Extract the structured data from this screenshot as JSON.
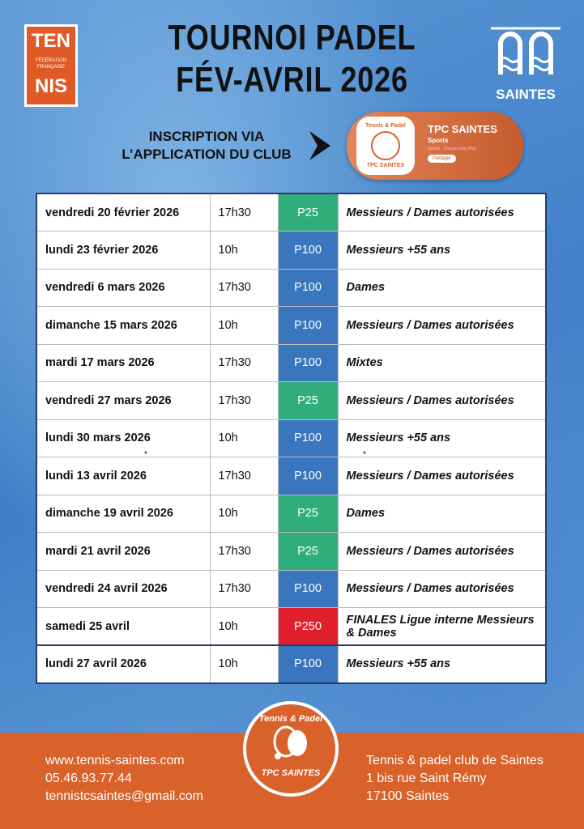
{
  "header": {
    "title_line1": "TOURNOI PADEL",
    "title_line2": "FÉV-AVRIL 2026",
    "inscription_line1": "INSCRIPTION VIA",
    "inscription_line2": "L’APPLICATION DU CLUB"
  },
  "fft_logo": {
    "top": "TEN",
    "middle": "FÉDÉRATION FRANÇAISE",
    "bottom": "NIS"
  },
  "city_logo": {
    "name": "SAINTES"
  },
  "app_card": {
    "name": "TPC SAINTES",
    "category": "Sports",
    "subtitle": "Gratuit · Conçue pour iPad",
    "button": "Partager",
    "icon_top": "Tennis & Padel",
    "icon_bottom": "TPC SAINTES"
  },
  "table": {
    "rows": [
      {
        "date": "vendredi 20 février 2026",
        "time": "17h30",
        "level": "P25",
        "color": "#2fae7c",
        "category": "Messieurs / Dames autorisées"
      },
      {
        "date": "lundi 23 février 2026",
        "time": "10h",
        "level": "P100",
        "color": "#3a76bd",
        "category": "Messieurs +55 ans"
      },
      {
        "date": "vendredi 6 mars 2026",
        "time": "17h30",
        "level": "P100",
        "color": "#3a76bd",
        "category": "Dames"
      },
      {
        "date": "dimanche 15 mars 2026",
        "time": "10h",
        "level": "P100",
        "color": "#3a76bd",
        "category": "Messieurs / Dames autorisées"
      },
      {
        "date": "mardi 17 mars 2026",
        "time": "17h30",
        "level": "P100",
        "color": "#3a76bd",
        "category": "Mixtes"
      },
      {
        "date": "vendredi 27 mars 2026",
        "time": "17h30",
        "level": "P25",
        "color": "#2fae7c",
        "category": "Messieurs / Dames autorisées"
      },
      {
        "date": "lundi 30 mars 2026",
        "time": "10h",
        "level": "P100",
        "color": "#3a76bd",
        "category": "Messieurs +55 ans"
      },
      {
        "date": "lundi 13 avril 2026",
        "time": "17h30",
        "level": "P100",
        "color": "#3a76bd",
        "category": "Messieurs / Dames autorisées"
      },
      {
        "date": "dimanche 19 avril 2026",
        "time": "10h",
        "level": "P25",
        "color": "#2fae7c",
        "category": "Dames"
      },
      {
        "date": "mardi 21 avril 2026",
        "time": "17h30",
        "level": "P25",
        "color": "#2fae7c",
        "category": "Messieurs / Dames autorisées"
      },
      {
        "date": "vendredi 24 avril 2026",
        "time": "17h30",
        "level": "P100",
        "color": "#3a76bd",
        "category": "Messieurs / Dames autorisées"
      },
      {
        "date": "samedi 25 avril",
        "time": "10h",
        "level": "P250",
        "color": "#e11e2c",
        "category": "FINALES Ligue interne Messieurs & Dames"
      },
      {
        "date": "lundi 27 avril 2026",
        "time": "10h",
        "level": "P100",
        "color": "#3a76bd",
        "category": "Messieurs +55 ans"
      }
    ],
    "marks": [
      "*",
      "*"
    ]
  },
  "badge": {
    "top": "Tennis & Padel",
    "bottom": "TPC SAINTES"
  },
  "footer": {
    "left": [
      "www.tennis-saintes.com",
      "05.46.93.77.44",
      "tennistcsaintes@gmail.com"
    ],
    "right": [
      "Tennis & padel club de Saintes",
      "1 bis rue Saint Rémy",
      "17100 Saintes"
    ]
  }
}
